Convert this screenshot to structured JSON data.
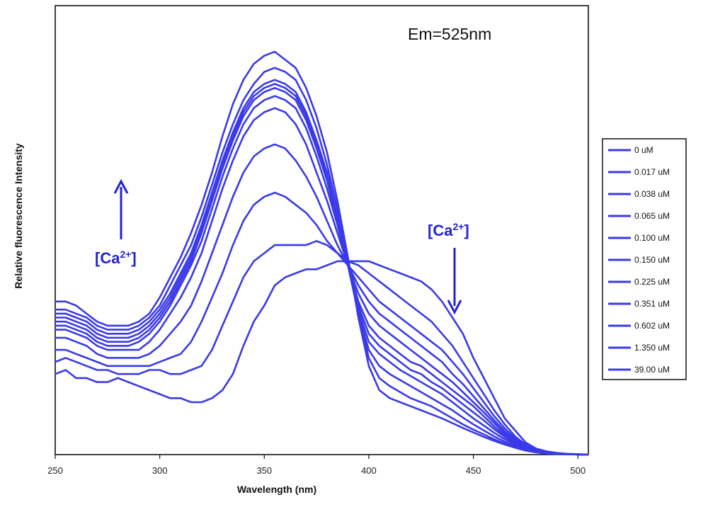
{
  "chart_data": {
    "type": "line",
    "title": "",
    "annotation": "Em=525nm",
    "xlabel": "Wavelength (nm)",
    "ylabel": "Relative fluorescence Intensity",
    "xlim": [
      250,
      505
    ],
    "xticks": [
      250,
      300,
      350,
      400,
      450,
      500
    ],
    "ylim": [
      0,
      1
    ],
    "y_ticks_shown": false,
    "grid": false,
    "legend_position": "right",
    "series_color": "#3a3ae8",
    "ca_arrow_label": {
      "prefix": "[Ca",
      "sup": "2+",
      "suffix": "]"
    },
    "ca_arrows": [
      {
        "direction": "up",
        "near_wavelength": 280
      },
      {
        "direction": "down",
        "near_wavelength": 440
      }
    ],
    "series": [
      {
        "name": "0 uM",
        "x": [
          250,
          255,
          260,
          265,
          270,
          275,
          280,
          285,
          290,
          295,
          300,
          305,
          310,
          315,
          320,
          325,
          330,
          335,
          340,
          345,
          350,
          355,
          360,
          365,
          370,
          375,
          380,
          385,
          390,
          395,
          400,
          405,
          410,
          415,
          420,
          425,
          430,
          435,
          440,
          445,
          450,
          455,
          460,
          465,
          470,
          475,
          480,
          485,
          490,
          495,
          500,
          505
        ],
        "y": [
          0.2,
          0.21,
          0.19,
          0.19,
          0.18,
          0.18,
          0.19,
          0.18,
          0.17,
          0.16,
          0.15,
          0.14,
          0.14,
          0.13,
          0.13,
          0.14,
          0.16,
          0.2,
          0.27,
          0.33,
          0.37,
          0.42,
          0.44,
          0.45,
          0.46,
          0.46,
          0.47,
          0.48,
          0.48,
          0.48,
          0.48,
          0.47,
          0.46,
          0.45,
          0.44,
          0.43,
          0.41,
          0.38,
          0.34,
          0.3,
          0.24,
          0.19,
          0.14,
          0.09,
          0.06,
          0.03,
          0.015,
          0.008,
          0.004,
          0.002,
          0.001,
          0
        ]
      },
      {
        "name": "0.017 uM",
        "x": [
          250,
          255,
          260,
          265,
          270,
          275,
          280,
          285,
          290,
          295,
          300,
          305,
          310,
          315,
          320,
          325,
          330,
          335,
          340,
          345,
          350,
          355,
          360,
          365,
          370,
          375,
          380,
          385,
          390,
          395,
          400,
          405,
          410,
          415,
          420,
          425,
          430,
          435,
          440,
          445,
          450,
          455,
          460,
          465,
          470,
          475,
          480,
          485,
          490,
          495,
          500,
          505
        ],
        "y": [
          0.23,
          0.24,
          0.23,
          0.22,
          0.21,
          0.21,
          0.2,
          0.2,
          0.2,
          0.21,
          0.21,
          0.2,
          0.2,
          0.21,
          0.22,
          0.26,
          0.32,
          0.38,
          0.44,
          0.48,
          0.5,
          0.52,
          0.52,
          0.52,
          0.52,
          0.53,
          0.52,
          0.5,
          0.48,
          0.47,
          0.45,
          0.43,
          0.41,
          0.39,
          0.37,
          0.35,
          0.33,
          0.3,
          0.27,
          0.23,
          0.19,
          0.15,
          0.11,
          0.075,
          0.045,
          0.025,
          0.012,
          0.006,
          0.003,
          0.0015,
          0.0008,
          0
        ]
      },
      {
        "name": "0.038 uM",
        "x": [
          250,
          255,
          260,
          265,
          270,
          275,
          280,
          285,
          290,
          295,
          300,
          305,
          310,
          315,
          320,
          325,
          330,
          335,
          340,
          345,
          350,
          355,
          360,
          365,
          370,
          375,
          380,
          385,
          390,
          395,
          400,
          405,
          410,
          415,
          420,
          425,
          430,
          435,
          440,
          445,
          450,
          455,
          460,
          465,
          470,
          475,
          480,
          485,
          490,
          495,
          500,
          505
        ],
        "y": [
          0.26,
          0.26,
          0.25,
          0.24,
          0.23,
          0.22,
          0.22,
          0.22,
          0.22,
          0.22,
          0.23,
          0.24,
          0.25,
          0.28,
          0.33,
          0.39,
          0.45,
          0.52,
          0.58,
          0.62,
          0.64,
          0.65,
          0.64,
          0.62,
          0.6,
          0.57,
          0.53,
          0.5,
          0.47,
          0.44,
          0.41,
          0.38,
          0.36,
          0.34,
          0.32,
          0.3,
          0.28,
          0.26,
          0.23,
          0.2,
          0.165,
          0.13,
          0.095,
          0.065,
          0.04,
          0.022,
          0.011,
          0.005,
          0.0025,
          0.0012,
          0.0006,
          0
        ]
      },
      {
        "name": "0.065 uM",
        "x": [
          250,
          255,
          260,
          265,
          270,
          275,
          280,
          285,
          290,
          295,
          300,
          305,
          310,
          315,
          320,
          325,
          330,
          335,
          340,
          345,
          350,
          355,
          360,
          365,
          370,
          375,
          380,
          385,
          390,
          395,
          400,
          405,
          410,
          415,
          420,
          425,
          430,
          435,
          440,
          445,
          450,
          455,
          460,
          465,
          470,
          475,
          480,
          485,
          490,
          495,
          500,
          505
        ],
        "y": [
          0.29,
          0.29,
          0.28,
          0.27,
          0.25,
          0.24,
          0.24,
          0.24,
          0.24,
          0.25,
          0.27,
          0.3,
          0.33,
          0.37,
          0.43,
          0.5,
          0.57,
          0.64,
          0.7,
          0.74,
          0.76,
          0.77,
          0.76,
          0.73,
          0.69,
          0.64,
          0.58,
          0.52,
          0.47,
          0.42,
          0.38,
          0.35,
          0.33,
          0.31,
          0.29,
          0.27,
          0.25,
          0.23,
          0.2,
          0.175,
          0.145,
          0.115,
          0.085,
          0.058,
          0.036,
          0.02,
          0.01,
          0.005,
          0.0025,
          0.0012,
          0.0006,
          0
        ]
      },
      {
        "name": "0.100 uM",
        "x": [
          250,
          255,
          260,
          265,
          270,
          275,
          280,
          285,
          290,
          295,
          300,
          305,
          310,
          315,
          320,
          325,
          330,
          335,
          340,
          345,
          350,
          355,
          360,
          365,
          370,
          375,
          380,
          385,
          390,
          395,
          400,
          405,
          410,
          415,
          420,
          425,
          430,
          435,
          440,
          445,
          450,
          455,
          460,
          465,
          470,
          475,
          480,
          485,
          490,
          495,
          500,
          505
        ],
        "y": [
          0.31,
          0.31,
          0.3,
          0.29,
          0.27,
          0.26,
          0.26,
          0.26,
          0.26,
          0.28,
          0.31,
          0.35,
          0.39,
          0.44,
          0.5,
          0.58,
          0.66,
          0.73,
          0.79,
          0.83,
          0.85,
          0.86,
          0.85,
          0.82,
          0.77,
          0.7,
          0.63,
          0.55,
          0.47,
          0.4,
          0.35,
          0.32,
          0.3,
          0.28,
          0.26,
          0.24,
          0.22,
          0.2,
          0.18,
          0.155,
          0.13,
          0.105,
          0.078,
          0.053,
          0.033,
          0.018,
          0.009,
          0.0045,
          0.0022,
          0.001,
          0.0005,
          0
        ]
      },
      {
        "name": "0.150 uM",
        "x": [
          250,
          255,
          260,
          265,
          270,
          275,
          280,
          285,
          290,
          295,
          300,
          305,
          310,
          315,
          320,
          325,
          330,
          335,
          340,
          345,
          350,
          355,
          360,
          365,
          370,
          375,
          380,
          385,
          390,
          395,
          400,
          405,
          410,
          415,
          420,
          425,
          430,
          435,
          440,
          445,
          450,
          455,
          460,
          465,
          470,
          475,
          480,
          485,
          490,
          495,
          500,
          505
        ],
        "y": [
          0.32,
          0.32,
          0.31,
          0.3,
          0.28,
          0.27,
          0.27,
          0.27,
          0.28,
          0.3,
          0.33,
          0.37,
          0.42,
          0.47,
          0.53,
          0.61,
          0.69,
          0.76,
          0.82,
          0.86,
          0.88,
          0.89,
          0.88,
          0.86,
          0.81,
          0.74,
          0.66,
          0.57,
          0.47,
          0.38,
          0.32,
          0.29,
          0.27,
          0.25,
          0.23,
          0.22,
          0.2,
          0.18,
          0.16,
          0.14,
          0.12,
          0.095,
          0.07,
          0.048,
          0.03,
          0.017,
          0.0085,
          0.004,
          0.002,
          0.001,
          0.0005,
          0
        ]
      },
      {
        "name": "0.225 uM",
        "x": [
          250,
          255,
          260,
          265,
          270,
          275,
          280,
          285,
          290,
          295,
          300,
          305,
          310,
          315,
          320,
          325,
          330,
          335,
          340,
          345,
          350,
          355,
          360,
          365,
          370,
          375,
          380,
          385,
          390,
          395,
          400,
          405,
          410,
          415,
          420,
          425,
          430,
          435,
          440,
          445,
          450,
          455,
          460,
          465,
          470,
          475,
          480,
          485,
          490,
          495,
          500,
          505
        ],
        "y": [
          0.33,
          0.33,
          0.32,
          0.31,
          0.29,
          0.28,
          0.28,
          0.28,
          0.29,
          0.31,
          0.34,
          0.38,
          0.43,
          0.48,
          0.55,
          0.63,
          0.71,
          0.78,
          0.84,
          0.88,
          0.9,
          0.91,
          0.9,
          0.88,
          0.83,
          0.76,
          0.68,
          0.58,
          0.47,
          0.37,
          0.3,
          0.27,
          0.25,
          0.23,
          0.21,
          0.2,
          0.18,
          0.165,
          0.145,
          0.125,
          0.105,
          0.085,
          0.063,
          0.044,
          0.028,
          0.016,
          0.008,
          0.004,
          0.002,
          0.001,
          0.0005,
          0
        ]
      },
      {
        "name": "0.351 uM",
        "x": [
          250,
          255,
          260,
          265,
          270,
          275,
          280,
          285,
          290,
          295,
          300,
          305,
          310,
          315,
          320,
          325,
          330,
          335,
          340,
          345,
          350,
          355,
          360,
          365,
          370,
          375,
          380,
          385,
          390,
          395,
          400,
          405,
          410,
          415,
          420,
          425,
          430,
          435,
          440,
          445,
          450,
          455,
          460,
          465,
          470,
          475,
          480,
          485,
          490,
          495,
          500,
          505
        ],
        "y": [
          0.34,
          0.34,
          0.33,
          0.32,
          0.3,
          0.29,
          0.29,
          0.29,
          0.3,
          0.32,
          0.35,
          0.39,
          0.44,
          0.49,
          0.56,
          0.64,
          0.72,
          0.79,
          0.85,
          0.89,
          0.91,
          0.92,
          0.91,
          0.89,
          0.84,
          0.77,
          0.69,
          0.59,
          0.47,
          0.36,
          0.28,
          0.25,
          0.23,
          0.21,
          0.195,
          0.18,
          0.165,
          0.15,
          0.13,
          0.11,
          0.09,
          0.072,
          0.054,
          0.038,
          0.025,
          0.014,
          0.0075,
          0.0038,
          0.0019,
          0.0009,
          0.0004,
          0
        ]
      },
      {
        "name": "0.602 uM",
        "x": [
          250,
          255,
          260,
          265,
          270,
          275,
          280,
          285,
          290,
          295,
          300,
          305,
          310,
          315,
          320,
          325,
          330,
          335,
          340,
          345,
          350,
          355,
          360,
          365,
          370,
          375,
          380,
          385,
          390,
          395,
          400,
          405,
          410,
          415,
          420,
          425,
          430,
          435,
          440,
          445,
          450,
          455,
          460,
          465,
          470,
          475,
          480,
          485,
          490,
          495,
          500,
          505
        ],
        "y": [
          0.35,
          0.35,
          0.34,
          0.33,
          0.31,
          0.3,
          0.3,
          0.3,
          0.31,
          0.33,
          0.36,
          0.4,
          0.45,
          0.5,
          0.57,
          0.65,
          0.73,
          0.8,
          0.86,
          0.9,
          0.92,
          0.93,
          0.92,
          0.9,
          0.85,
          0.78,
          0.7,
          0.59,
          0.47,
          0.35,
          0.26,
          0.22,
          0.2,
          0.185,
          0.17,
          0.155,
          0.14,
          0.125,
          0.11,
          0.092,
          0.075,
          0.06,
          0.045,
          0.032,
          0.021,
          0.012,
          0.0065,
          0.0033,
          0.0016,
          0.0008,
          0.0004,
          0
        ]
      },
      {
        "name": "1.350 uM",
        "x": [
          250,
          255,
          260,
          265,
          270,
          275,
          280,
          285,
          290,
          295,
          300,
          305,
          310,
          315,
          320,
          325,
          330,
          335,
          340,
          345,
          350,
          355,
          360,
          365,
          370,
          375,
          380,
          385,
          390,
          395,
          400,
          405,
          410,
          415,
          420,
          425,
          430,
          435,
          440,
          445,
          450,
          455,
          460,
          465,
          470,
          475,
          480,
          485,
          490,
          495,
          500,
          505
        ],
        "y": [
          0.36,
          0.36,
          0.35,
          0.34,
          0.32,
          0.31,
          0.31,
          0.31,
          0.32,
          0.34,
          0.37,
          0.42,
          0.47,
          0.52,
          0.59,
          0.67,
          0.75,
          0.82,
          0.88,
          0.92,
          0.95,
          0.96,
          0.95,
          0.93,
          0.88,
          0.81,
          0.72,
          0.61,
          0.48,
          0.35,
          0.24,
          0.19,
          0.17,
          0.155,
          0.14,
          0.13,
          0.12,
          0.105,
          0.09,
          0.075,
          0.062,
          0.05,
          0.038,
          0.027,
          0.018,
          0.011,
          0.006,
          0.003,
          0.0015,
          0.0007,
          0.0003,
          0
        ]
      },
      {
        "name": "39.00 uM",
        "x": [
          250,
          255,
          260,
          265,
          270,
          275,
          280,
          285,
          290,
          295,
          300,
          305,
          310,
          315,
          320,
          325,
          330,
          335,
          340,
          345,
          350,
          355,
          360,
          365,
          370,
          375,
          380,
          385,
          390,
          395,
          400,
          405,
          410,
          415,
          420,
          425,
          430,
          435,
          440,
          445,
          450,
          455,
          460,
          465,
          470,
          475,
          480,
          485,
          490,
          495,
          500,
          505
        ],
        "y": [
          0.38,
          0.38,
          0.37,
          0.35,
          0.33,
          0.32,
          0.32,
          0.32,
          0.33,
          0.35,
          0.39,
          0.44,
          0.49,
          0.55,
          0.62,
          0.7,
          0.79,
          0.87,
          0.93,
          0.97,
          0.99,
          1.0,
          0.98,
          0.96,
          0.91,
          0.84,
          0.75,
          0.63,
          0.49,
          0.34,
          0.22,
          0.16,
          0.14,
          0.13,
          0.12,
          0.11,
          0.1,
          0.09,
          0.078,
          0.066,
          0.055,
          0.044,
          0.034,
          0.025,
          0.017,
          0.01,
          0.0055,
          0.0028,
          0.0014,
          0.0007,
          0.0003,
          0
        ]
      }
    ]
  }
}
